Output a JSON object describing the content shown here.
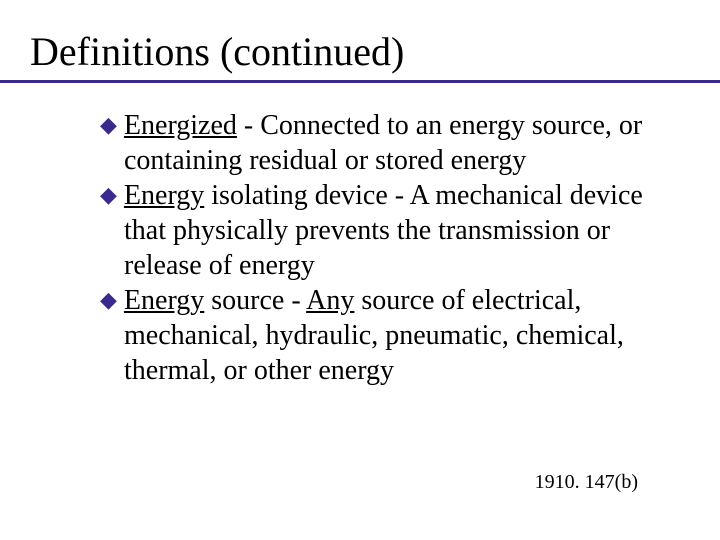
{
  "title": "Definitions (continued)",
  "colors": {
    "accent": "#3b2a8e",
    "text": "#000000",
    "background": "#ffffff"
  },
  "typography": {
    "family": "Times New Roman",
    "title_fontsize": 40,
    "body_fontsize": 28,
    "footer_fontsize": 20
  },
  "bullets": {
    "glyph": "◆",
    "color": "#3b2a8e"
  },
  "items": [
    {
      "term": "Energized",
      "sep": " - ",
      "def": "Connected to an energy source, or containing residual or stored energy"
    },
    {
      "term": "Energy",
      "post_term": " isolating device - ",
      "def": "A mechanical device that physically prevents the transmission or release of energy"
    },
    {
      "term": "Energy",
      "post_term": " source - ",
      "emph": "Any",
      "def_tail": " source of electrical, mechanical, hydraulic, pneumatic, chemical, thermal, or other energy"
    }
  ],
  "footer": "1910. 147(b)"
}
